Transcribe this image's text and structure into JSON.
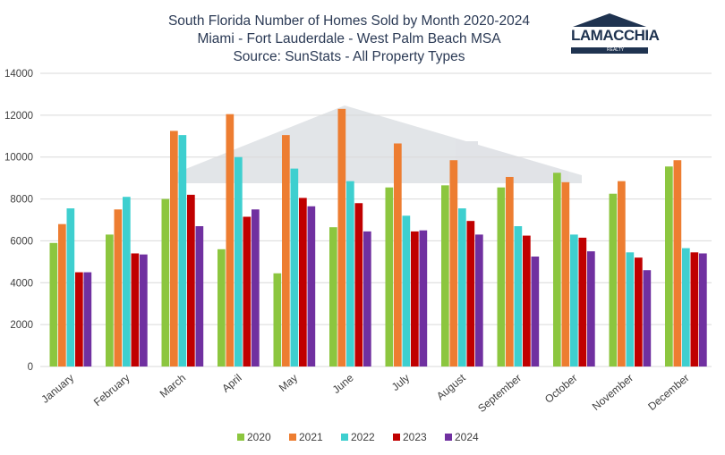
{
  "title_lines": [
    "South Florida Number of Homes Sold by Month 2020-2024",
    "Miami - Fort Lauderdale - West Palm Beach MSA",
    "Source: SunStats - All Property Types"
  ],
  "logo": {
    "name": "LAMACCHIA",
    "sub": "REALTY",
    "color": "#1f3350"
  },
  "chart_data": {
    "type": "bar",
    "title": "South Florida Number of Homes Sold by Month 2020-2024",
    "xlabel": "",
    "ylabel": "",
    "ylim": [
      0,
      14000
    ],
    "yticks": [
      0,
      2000,
      4000,
      6000,
      8000,
      10000,
      12000,
      14000
    ],
    "grid": true,
    "legend_position": "bottom",
    "categories": [
      "January",
      "February",
      "March",
      "April",
      "May",
      "June",
      "July",
      "August",
      "September",
      "October",
      "November",
      "December"
    ],
    "series": [
      {
        "name": "2020",
        "color": "#8cc63f",
        "values": [
          5900,
          6300,
          8000,
          5600,
          4450,
          6650,
          8550,
          8650,
          8550,
          9250,
          8250,
          9550
        ]
      },
      {
        "name": "2021",
        "color": "#ed7d31",
        "values": [
          6800,
          7500,
          11250,
          12050,
          11050,
          12300,
          10650,
          9850,
          9050,
          8800,
          8850,
          9850
        ]
      },
      {
        "name": "2022",
        "color": "#3ecfcf",
        "values": [
          7550,
          8100,
          11050,
          10000,
          9450,
          8850,
          7200,
          7550,
          6700,
          6300,
          5450,
          5650
        ]
      },
      {
        "name": "2023",
        "color": "#c00000",
        "values": [
          4500,
          5400,
          8200,
          7150,
          8050,
          7800,
          6450,
          6950,
          6250,
          6150,
          5200,
          5450
        ]
      },
      {
        "name": "2024",
        "color": "#7030a0",
        "values": [
          4500,
          5350,
          6700,
          7500,
          7650,
          6450,
          6500,
          6300,
          5250,
          5500,
          4600,
          5400
        ]
      }
    ]
  }
}
